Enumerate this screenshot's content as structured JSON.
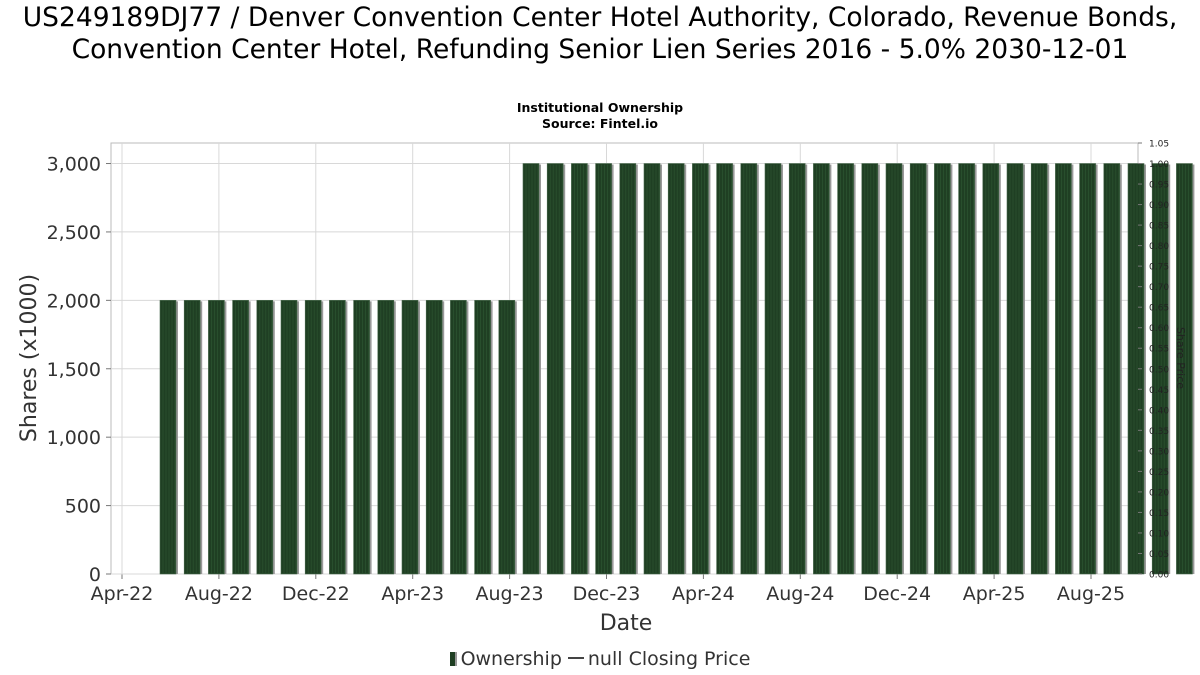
{
  "title": "US249189DJ77 / Denver Convention Center Hotel Authority, Colorado, Revenue Bonds, Convention Center Hotel, Refunding Senior Lien Series 2016 - 5.0% 2030-12-01",
  "subtitle_lines": [
    "Institutional Ownership",
    "Source: Fintel.io"
  ],
  "legend": {
    "ownership": "Ownership",
    "price": "null Closing Price"
  },
  "colors": {
    "bar": "#1f3f23",
    "bar_shadow": "#999999",
    "grid": "#d8d8d8"
  },
  "chart_data": {
    "type": "bar",
    "xlabel": "Date",
    "ylabel": "Shares (x1000)",
    "y2label": "Share Price",
    "ylim": [
      0,
      3150
    ],
    "y2lim": [
      0,
      1.05
    ],
    "x_tick_labels": [
      "Apr-22",
      "Aug-22",
      "Dec-22",
      "Apr-23",
      "Aug-23",
      "Dec-23",
      "Apr-24",
      "Aug-24",
      "Dec-24",
      "Apr-25",
      "Aug-25"
    ],
    "y_ticks": [
      0,
      500,
      1000,
      1500,
      2000,
      2500,
      3000
    ],
    "y_tick_labels": [
      "0",
      "500",
      "1,000",
      "1,500",
      "2,000",
      "2,500",
      "3,000"
    ],
    "y2_ticks": [
      "0.00",
      "0.05",
      "0.10",
      "0.15",
      "0.20",
      "0.25",
      "0.30",
      "0.35",
      "0.40",
      "0.45",
      "0.50",
      "0.55",
      "0.60",
      "0.65",
      "0.70",
      "0.75",
      "0.80",
      "0.85",
      "0.90",
      "0.95",
      "1.00",
      "1.05"
    ],
    "grid": true,
    "legend_position": "bottom",
    "series": [
      {
        "name": "Ownership",
        "values": [
          2000,
          2000,
          2000,
          2000,
          2000,
          2000,
          2000,
          2000,
          2000,
          2000,
          2000,
          2000,
          2000,
          2000,
          2000,
          3000,
          3000,
          3000,
          3000,
          3000,
          3000,
          3000,
          3000,
          3000,
          3000,
          3000,
          3000,
          3000,
          3000,
          3000,
          3000,
          3000,
          3000,
          3000,
          3000,
          3000,
          3000,
          3000,
          3000,
          3000,
          3000,
          3000,
          3000,
          3000
        ]
      }
    ]
  }
}
